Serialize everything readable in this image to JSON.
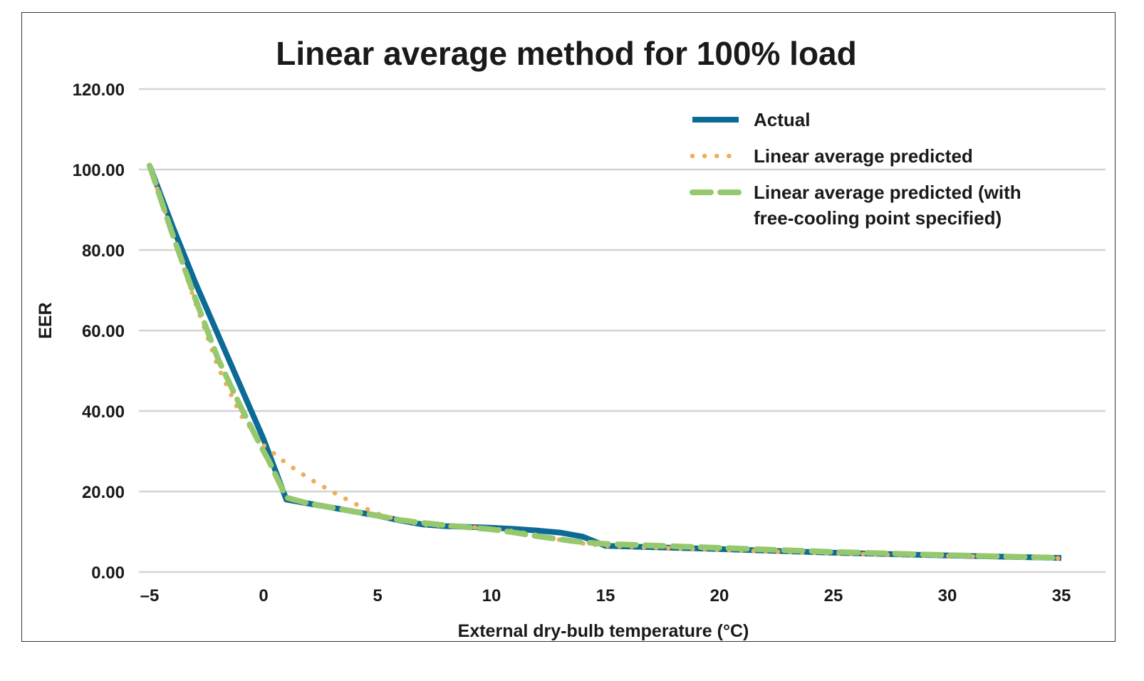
{
  "chart_data": {
    "type": "line",
    "title": "Linear average method for 100% load",
    "xlabel": "External dry-bulb temperature (°C)",
    "ylabel": "EER",
    "xlim": [
      -5,
      35
    ],
    "ylim": [
      0,
      120
    ],
    "x_ticks": [
      "–5",
      "0",
      "5",
      "10",
      "15",
      "20",
      "25",
      "30",
      "35"
    ],
    "y_ticks": [
      "120.00",
      "100.00",
      "80.00",
      "60.00",
      "40.00",
      "20.00",
      "0.00"
    ],
    "grid": "horizontal",
    "legend_position": "top-right",
    "series": [
      {
        "name": "Actual",
        "color": "#0b6a96",
        "style": "solid",
        "points": [
          [
            -5,
            101
          ],
          [
            -4,
            86
          ],
          [
            -3,
            72
          ],
          [
            -2,
            59
          ],
          [
            -1,
            46
          ],
          [
            0,
            33
          ],
          [
            1,
            18
          ],
          [
            2,
            17
          ],
          [
            3,
            16
          ],
          [
            4,
            15
          ],
          [
            5,
            14
          ],
          [
            6,
            12.8
          ],
          [
            7,
            11.8
          ],
          [
            8,
            11.4
          ],
          [
            9,
            11.2
          ],
          [
            10,
            11
          ],
          [
            11,
            10.7
          ],
          [
            12,
            10.3
          ],
          [
            13,
            9.8
          ],
          [
            14,
            8.8
          ],
          [
            15,
            6.5
          ],
          [
            20,
            5.7
          ],
          [
            25,
            4.8
          ],
          [
            30,
            4.1
          ],
          [
            35,
            3.5
          ]
        ]
      },
      {
        "name": "Linear average predicted",
        "color": "#f0ad5b",
        "style": "dotted",
        "points": [
          [
            -5,
            101
          ],
          [
            -4,
            84
          ],
          [
            -3,
            67
          ],
          [
            -2,
            51
          ],
          [
            -1,
            39
          ],
          [
            0,
            31.5
          ],
          [
            1,
            27
          ],
          [
            2,
            23.2
          ],
          [
            3,
            20
          ],
          [
            4,
            17
          ],
          [
            5,
            14.5
          ],
          [
            6,
            12.8
          ],
          [
            7,
            11.8
          ],
          [
            8,
            11.4
          ],
          [
            9,
            11.2
          ],
          [
            10,
            10.8
          ],
          [
            11,
            10.1
          ],
          [
            12,
            9.2
          ],
          [
            13,
            8
          ],
          [
            14,
            7.1
          ],
          [
            15,
            6.5
          ],
          [
            20,
            5.5
          ],
          [
            25,
            4.6
          ],
          [
            30,
            4
          ],
          [
            35,
            3.4
          ]
        ]
      },
      {
        "name": "Linear average predicted (with free-cooling point specified)",
        "color": "#96c86e",
        "style": "dashed",
        "points": [
          [
            -5,
            101
          ],
          [
            -4,
            84
          ],
          [
            -3,
            68
          ],
          [
            -2,
            53
          ],
          [
            -1,
            41
          ],
          [
            0,
            30
          ],
          [
            0.2,
            28
          ],
          [
            1,
            18.5
          ],
          [
            2,
            17
          ],
          [
            3,
            16
          ],
          [
            4,
            15
          ],
          [
            5,
            14
          ],
          [
            6,
            12.9
          ],
          [
            7,
            12.2
          ],
          [
            8,
            11.6
          ],
          [
            9,
            11.1
          ],
          [
            10,
            10.6
          ],
          [
            11,
            9.8
          ],
          [
            12,
            8.9
          ],
          [
            13,
            8.1
          ],
          [
            14,
            7.4
          ],
          [
            15,
            7
          ],
          [
            20,
            6
          ],
          [
            25,
            5
          ],
          [
            30,
            4.2
          ],
          [
            35,
            3.5
          ]
        ]
      }
    ],
    "legend": [
      {
        "lines": [
          "Actual"
        ]
      },
      {
        "lines": [
          "Linear average predicted"
        ]
      },
      {
        "lines": [
          "Linear average predicted (with",
          "free-cooling point specified)"
        ]
      }
    ]
  }
}
